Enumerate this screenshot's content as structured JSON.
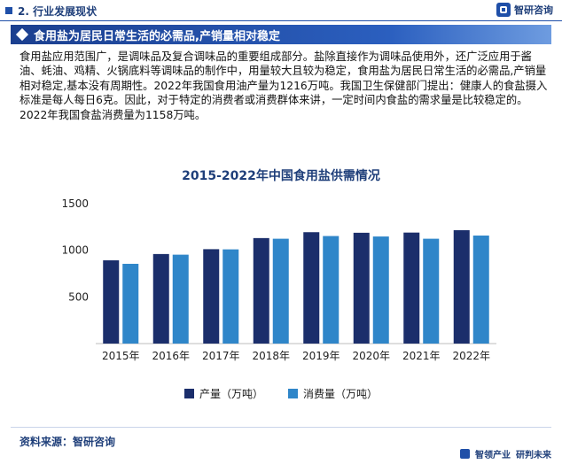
{
  "header": {
    "section_label": "2. 行业发展现状",
    "brand": "智研咨询"
  },
  "title_bar": {
    "title": "食用盐为居民日常生活的必需品,产销量相对稳定"
  },
  "body": {
    "paragraph": "食用盐应用范围广，是调味品及复合调味品的重要组成部分。盐除直接作为调味品使用外，还广泛应用于酱油、蚝油、鸡精、火锅底料等调味品的制作中，用量较大且较为稳定，食用盐为居民日常生活的必需品,产销量相对稳定,基本没有周期性。2022年我国食用油产量为1216万吨。我国卫生保健部门提出：健康人的食盐摄入标准是每人每日6克。因此，对于特定的消费者或消费群体来讲，一定时间内食盐的需求量是比较稳定的。2022年我国食盐消费量为1158万吨。"
  },
  "chart_data": {
    "type": "bar",
    "title": "2015-2022年中国食用盐供需情况",
    "categories": [
      "2015年",
      "2016年",
      "2017年",
      "2018年",
      "2019年",
      "2020年",
      "2021年",
      "2022年"
    ],
    "series": [
      {
        "name": "产量（万吨）",
        "values": [
          893,
          960,
          1012,
          1131,
          1194,
          1188,
          1190,
          1216
        ],
        "color": "#1b2e6b"
      },
      {
        "name": "消费量（万吨）",
        "values": [
          855,
          953,
          1010,
          1124,
          1153,
          1148,
          1124,
          1158
        ],
        "color": "#2f86c9"
      }
    ],
    "ylim": [
      0,
      1500
    ],
    "yticks": [
      500,
      1000,
      1500
    ],
    "grid": false,
    "legend_position": "bottom"
  },
  "footer": {
    "source": "资料来源：智研咨询",
    "brand_left": "智领产业",
    "brand_right": "研判未来"
  }
}
